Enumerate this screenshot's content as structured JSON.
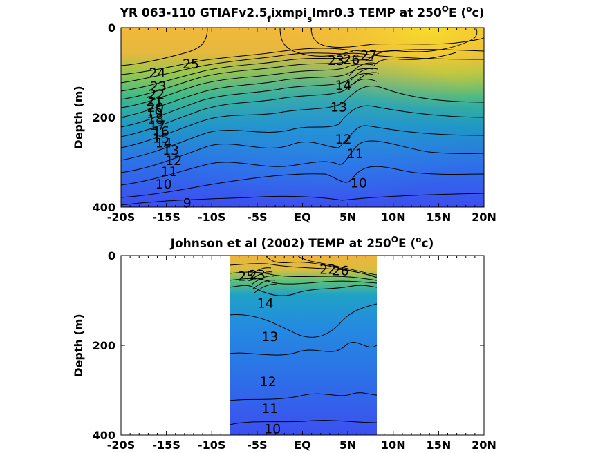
{
  "chart_data": [
    {
      "type": "heatmap",
      "title": "YR 063-110 GTIAFv2.5",
      "title_sub1": "f",
      "title_mid": "ixmpi",
      "title_sub2": "s",
      "title_mid2": "lmr0.3 TEMP at 250",
      "title_sup": "O",
      "title_end": "E (",
      "title_sup2": "o",
      "title_close": "c)",
      "ylabel": "Depth (m)",
      "xlim": [
        -20,
        20
      ],
      "ylim": [
        400,
        0
      ],
      "x_ticks": [
        "-20S",
        "-15S",
        "-10S",
        "-5S",
        "EQ",
        "5N",
        "10N",
        "15N",
        "20N"
      ],
      "y_ticks": [
        "0",
        "200",
        "400"
      ],
      "data_extent_x": [
        -20,
        20
      ],
      "contour_levels": [
        9,
        10,
        11,
        12,
        13,
        14,
        15,
        16,
        17,
        18,
        19,
        20,
        21,
        22,
        23,
        24,
        25,
        26,
        27
      ],
      "contour_labels": [
        {
          "text": "25",
          "x": -12.3,
          "y": 80
        },
        {
          "text": "24",
          "x": -16.0,
          "y": 100
        },
        {
          "text": "23",
          "x": -15.9,
          "y": 130
        },
        {
          "text": "22",
          "x": -16.1,
          "y": 148
        },
        {
          "text": "21",
          "x": -16.3,
          "y": 163
        },
        {
          "text": "20",
          "x": -16.2,
          "y": 177
        },
        {
          "text": "19",
          "x": -16.3,
          "y": 190
        },
        {
          "text": "18",
          "x": -16.2,
          "y": 203
        },
        {
          "text": "17",
          "x": -16.0,
          "y": 217
        },
        {
          "text": "16",
          "x": -15.6,
          "y": 230
        },
        {
          "text": "15",
          "x": -15.6,
          "y": 245
        },
        {
          "text": "14",
          "x": -15.3,
          "y": 256
        },
        {
          "text": "13",
          "x": -14.5,
          "y": 272
        },
        {
          "text": "12",
          "x": -14.2,
          "y": 295
        },
        {
          "text": "11",
          "x": -14.7,
          "y": 320
        },
        {
          "text": "10",
          "x": -15.3,
          "y": 348
        },
        {
          "text": "9",
          "x": -12.7,
          "y": 390
        },
        {
          "text": "23",
          "x": 3.7,
          "y": 72
        },
        {
          "text": "26",
          "x": 5.4,
          "y": 70
        },
        {
          "text": "27",
          "x": 7.3,
          "y": 61
        },
        {
          "text": "14",
          "x": 4.5,
          "y": 128
        },
        {
          "text": "13",
          "x": 4.0,
          "y": 176
        },
        {
          "text": "12",
          "x": 4.5,
          "y": 248
        },
        {
          "text": "11",
          "x": 5.8,
          "y": 280
        },
        {
          "text": "10",
          "x": 6.2,
          "y": 345
        }
      ]
    },
    {
      "type": "heatmap",
      "title": "Johnson et al (2002) TEMP at 250",
      "title_sup": "O",
      "title_end": "E (",
      "title_sup2": "o",
      "title_close": "c)",
      "ylabel": "Depth (m)",
      "xlim": [
        -20,
        20
      ],
      "ylim": [
        400,
        0
      ],
      "x_ticks": [
        "-20S",
        "-15S",
        "-10S",
        "-5S",
        "EQ",
        "5N",
        "10N",
        "15N",
        "20N"
      ],
      "y_ticks": [
        "0",
        "200",
        "400"
      ],
      "data_extent_x": [
        -8,
        8.3
      ],
      "contour_levels": [
        10,
        11,
        12,
        13,
        14,
        15,
        16,
        17,
        18,
        19,
        20,
        21,
        22,
        23,
        24,
        25,
        26
      ],
      "contour_labels": [
        {
          "text": "25",
          "x": -6.2,
          "y": 45
        },
        {
          "text": "23",
          "x": -5.0,
          "y": 42
        },
        {
          "text": "26",
          "x": 4.2,
          "y": 33
        },
        {
          "text": "22",
          "x": 2.8,
          "y": 30
        },
        {
          "text": "14",
          "x": -4.1,
          "y": 105
        },
        {
          "text": "13",
          "x": -3.6,
          "y": 180
        },
        {
          "text": "12",
          "x": -3.8,
          "y": 280
        },
        {
          "text": "11",
          "x": -3.6,
          "y": 340
        },
        {
          "text": "10",
          "x": -3.3,
          "y": 385
        }
      ]
    }
  ]
}
